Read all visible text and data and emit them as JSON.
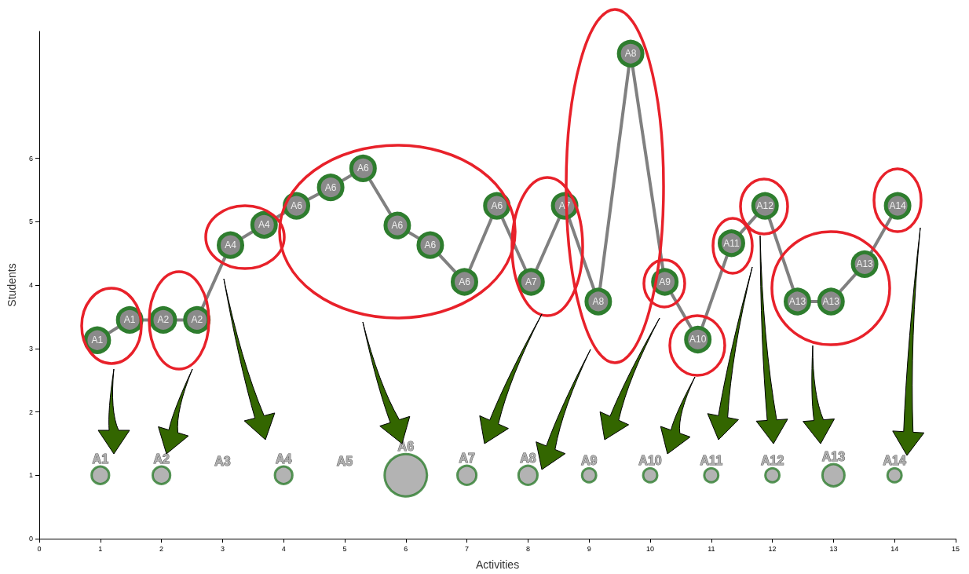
{
  "chart_data": {
    "type": "line",
    "xlabel": "Activities",
    "ylabel": "Students",
    "xlim": [
      0,
      15
    ],
    "xticks": [
      0,
      1,
      2,
      3,
      4,
      5,
      6,
      7,
      8,
      9,
      10,
      11,
      12,
      13,
      14,
      15
    ],
    "ylim": [
      0,
      8
    ],
    "yticks": [
      0,
      1,
      2,
      3,
      4,
      5,
      6
    ],
    "grid": false,
    "marker": "circle",
    "series": [
      {
        "color": "#808080",
        "x": [
          0.95,
          1.48,
          2.03,
          2.58,
          3.13,
          3.68,
          4.21,
          4.77,
          5.3,
          5.86,
          6.4,
          6.96,
          7.49,
          8.05,
          8.6,
          9.15,
          9.68,
          10.24,
          10.78,
          11.33,
          11.88,
          12.41,
          12.96,
          13.51,
          14.05
        ],
        "values": [
          3.13,
          3.45,
          3.45,
          3.45,
          4.63,
          4.95,
          5.25,
          5.54,
          5.84,
          4.94,
          4.63,
          4.05,
          5.25,
          4.05,
          5.25,
          3.74,
          7.65,
          4.05,
          3.14,
          4.66,
          5.25,
          3.74,
          3.74,
          4.33,
          5.25
        ],
        "value_labels": [
          "A1",
          "A1",
          "A2",
          "A2",
          "A4",
          "A4",
          "A6",
          "A6",
          "A6",
          "A6",
          "A6",
          "A6",
          "A6",
          "A7",
          "A7",
          "A8",
          "A8",
          "A9",
          "A10",
          "A11",
          "A12",
          "A13",
          "A13",
          "A13",
          "A14"
        ]
      },
      {
        "type": "bubble",
        "color": "#a0a0a0",
        "x": [
          1,
          2,
          3,
          4,
          5,
          6,
          7,
          8,
          9,
          10,
          11,
          12,
          13,
          14
        ],
        "values": [
          1,
          1,
          null,
          1,
          null,
          1,
          1,
          1,
          1,
          1,
          1,
          1,
          1,
          1
        ],
        "sizes": [
          0.17,
          0.17,
          null,
          0.17,
          null,
          1,
          0.2,
          0.2,
          0.11,
          0.11,
          0.11,
          0.11,
          0.27,
          0.11
        ]
      }
    ],
    "annotations": [
      "A1",
      "A2",
      "A3",
      "A4",
      "A5",
      "A6",
      "A7",
      "A8",
      "A9",
      "A10",
      "A11",
      "A12",
      "A13",
      "A14"
    ]
  }
}
